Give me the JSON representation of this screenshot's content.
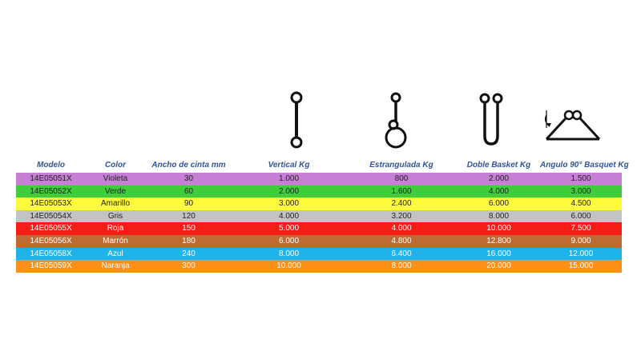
{
  "headers": [
    "Modelo",
    "Color",
    "Ancho de cinta mm",
    "Vertical Kg",
    "Estrangulada Kg",
    "Doble Basket Kg",
    "Angulo 90° Basquet Kg"
  ],
  "icons": [
    "vertical-sling-icon",
    "choker-sling-icon",
    "double-basket-sling-icon",
    "basket-90-sling-icon"
  ],
  "rows": [
    {
      "modelo": "14E05051X",
      "color": "Violeta",
      "ancho": "30",
      "vertical": "1.000",
      "estrangulada": "800",
      "doble": "2.000",
      "angulo": "1.500",
      "bg": "#c77fd6",
      "text": "dark"
    },
    {
      "modelo": "14E05052X",
      "color": "Verde",
      "ancho": "60",
      "vertical": "2.000",
      "estrangulada": "1.600",
      "doble": "4.000",
      "angulo": "3.000",
      "bg": "#3fcd3c",
      "text": "dark"
    },
    {
      "modelo": "14E05053X",
      "color": "Amarillo",
      "ancho": "90",
      "vertical": "3.000",
      "estrangulada": "2.400",
      "doble": "6.000",
      "angulo": "4.500",
      "bg": "#fffb3a",
      "text": "dark"
    },
    {
      "modelo": "14E05054X",
      "color": "Gris",
      "ancho": "120",
      "vertical": "4.000",
      "estrangulada": "3.200",
      "doble": "8.000",
      "angulo": "6.000",
      "bg": "#c3c3c3",
      "text": "dark"
    },
    {
      "modelo": "14E05055X",
      "color": "Roja",
      "ancho": "150",
      "vertical": "5.000",
      "estrangulada": "4.000",
      "doble": "10.000",
      "angulo": "7.500",
      "bg": "#f51e16",
      "text": "light"
    },
    {
      "modelo": "14E05056X",
      "color": "Marrón",
      "ancho": "180",
      "vertical": "6.000",
      "estrangulada": "4.800",
      "doble": "12.800",
      "angulo": "9.000",
      "bg": "#bf6a33",
      "text": "light"
    },
    {
      "modelo": "14E05058X",
      "color": "Azul",
      "ancho": "240",
      "vertical": "8.000",
      "estrangulada": "6.400",
      "doble": "16.000",
      "angulo": "12.000",
      "bg": "#1fb3ea",
      "text": "light"
    },
    {
      "modelo": "14E05059X",
      "color": "Naranja",
      "ancho": "300",
      "vertical": "10.000",
      "estrangulada": "8.000",
      "doble": "20.000",
      "angulo": "15.000",
      "bg": "#fd9017",
      "text": "light"
    }
  ]
}
